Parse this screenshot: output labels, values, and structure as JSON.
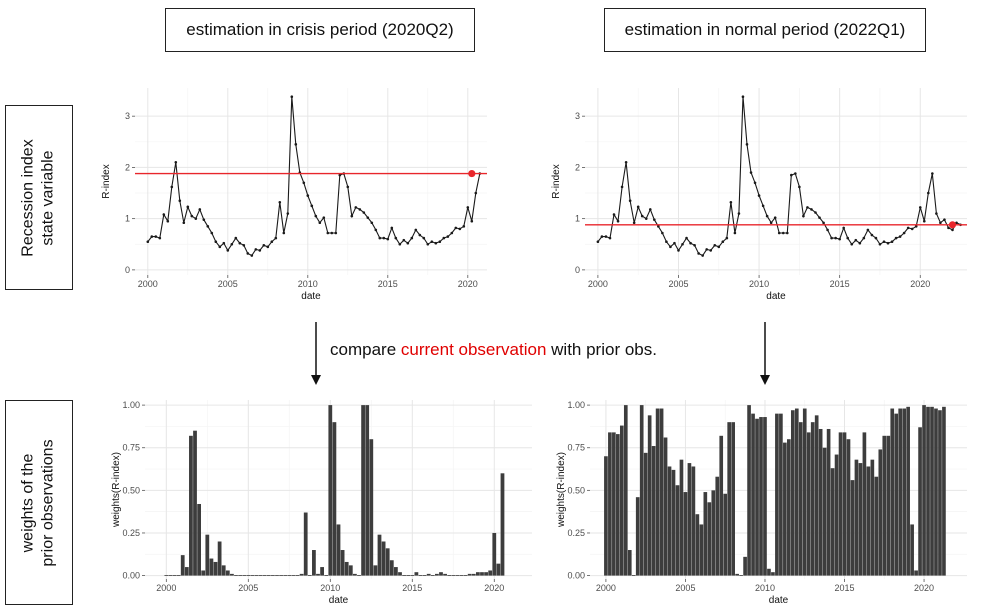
{
  "titles": {
    "left": "estimation in crisis period (2020Q2)",
    "right": "estimation in normal period (2022Q1)"
  },
  "side_labels": {
    "top": [
      "Recession index",
      "state variable"
    ],
    "bottom": [
      "weights of the",
      "prior observations"
    ]
  },
  "middle_text": {
    "prefix": "compare ",
    "highlight": "current observation",
    "suffix": " with prior obs."
  },
  "colors": {
    "line": "#1a1a1a",
    "hline": "#e8262b",
    "point": "#e8262b",
    "bar": "#3d3d3d",
    "grid_major": "#e6e6e6",
    "grid_minor": "#f4f4f4",
    "highlight_text": "#e00000"
  },
  "chart_data": [
    {
      "type": "line",
      "panel": "top-left",
      "xlabel": "date",
      "ylabel": "R-index",
      "xlim": [
        1999.2,
        2021.2
      ],
      "ylim": [
        -0.1,
        3.55
      ],
      "xticks": [
        2000,
        2005,
        2010,
        2015,
        2020
      ],
      "yticks": [
        0,
        1,
        2,
        3
      ],
      "grid": true,
      "hline": 1.88,
      "current_point": {
        "x": 2020.25,
        "y": 1.88
      },
      "series": [
        {
          "x_start": 2000.0,
          "x_step": 0.25,
          "values": [
            0.55,
            0.65,
            0.65,
            0.62,
            1.08,
            0.95,
            1.62,
            2.1,
            1.35,
            0.92,
            1.23,
            1.05,
            1.0,
            1.18,
            0.98,
            0.85,
            0.72,
            0.55,
            0.45,
            0.52,
            0.38,
            0.5,
            0.62,
            0.52,
            0.48,
            0.32,
            0.28,
            0.4,
            0.38,
            0.48,
            0.45,
            0.55,
            0.62,
            1.32,
            0.72,
            1.1,
            3.38,
            2.45,
            1.9,
            1.7,
            1.45,
            1.25,
            1.05,
            0.92,
            1.02,
            0.72,
            0.72,
            0.72,
            1.85,
            1.88,
            1.62,
            1.05,
            1.22,
            1.18,
            1.12,
            1.02,
            0.92,
            0.78,
            0.62,
            0.62,
            0.6,
            0.82,
            0.62,
            0.5,
            0.58,
            0.52,
            0.62,
            0.78,
            0.68,
            0.62,
            0.5,
            0.55,
            0.52,
            0.55,
            0.62,
            0.65,
            0.72,
            0.82,
            0.8,
            0.85,
            1.22,
            0.95,
            1.5,
            1.88
          ]
        }
      ]
    },
    {
      "type": "line",
      "panel": "top-right",
      "xlabel": "date",
      "ylabel": "R-index",
      "xlim": [
        1999.2,
        2022.9
      ],
      "ylim": [
        -0.1,
        3.55
      ],
      "xticks": [
        2000,
        2005,
        2010,
        2015,
        2020
      ],
      "yticks": [
        0,
        1,
        2,
        3
      ],
      "grid": true,
      "hline": 0.88,
      "current_point": {
        "x": 2022.0,
        "y": 0.88
      },
      "series": [
        {
          "x_start": 2000.0,
          "x_step": 0.25,
          "values": [
            0.55,
            0.65,
            0.65,
            0.62,
            1.08,
            0.95,
            1.62,
            2.1,
            1.35,
            0.92,
            1.23,
            1.05,
            1.0,
            1.18,
            0.98,
            0.85,
            0.72,
            0.55,
            0.45,
            0.52,
            0.38,
            0.5,
            0.62,
            0.52,
            0.48,
            0.32,
            0.28,
            0.4,
            0.38,
            0.48,
            0.45,
            0.55,
            0.62,
            1.32,
            0.72,
            1.1,
            3.38,
            2.45,
            1.9,
            1.7,
            1.45,
            1.25,
            1.05,
            0.92,
            1.02,
            0.72,
            0.72,
            0.72,
            1.85,
            1.88,
            1.62,
            1.05,
            1.22,
            1.18,
            1.12,
            1.02,
            0.92,
            0.78,
            0.62,
            0.62,
            0.6,
            0.82,
            0.62,
            0.5,
            0.58,
            0.52,
            0.62,
            0.78,
            0.68,
            0.62,
            0.5,
            0.55,
            0.52,
            0.55,
            0.62,
            0.65,
            0.72,
            0.82,
            0.8,
            0.85,
            1.22,
            0.95,
            1.5,
            1.88,
            1.1,
            0.92,
            0.98,
            0.82,
            0.78,
            0.92,
            0.88
          ]
        }
      ]
    },
    {
      "type": "bar",
      "panel": "bottom-left",
      "xlabel": "date",
      "ylabel": "weights(R-index)",
      "xlim": [
        1998.7,
        2022.3
      ],
      "ylim": [
        -0.02,
        1.03
      ],
      "xticks": [
        2000,
        2005,
        2010,
        2015,
        2020
      ],
      "yticks": [
        0,
        0.25,
        0.5,
        0.75,
        1.0
      ],
      "ytick_labels": [
        "0.00",
        "0.25",
        "0.50",
        "0.75",
        "1.00"
      ],
      "grid": true,
      "series": [
        {
          "x_start": 2000.0,
          "x_step": 0.25,
          "values": [
            0,
            0,
            0,
            0,
            0.12,
            0.05,
            0.82,
            0.85,
            0.42,
            0.03,
            0.24,
            0.1,
            0.08,
            0.2,
            0.06,
            0.03,
            0.01,
            0,
            0,
            0,
            0,
            0,
            0,
            0,
            0,
            0,
            0,
            0,
            0,
            0,
            0,
            0,
            0,
            0.01,
            0.37,
            0,
            0.15,
            0.01,
            0.05,
            0,
            1.0,
            0.9,
            0.3,
            0.15,
            0.08,
            0.06,
            0.01,
            0,
            1.0,
            1.0,
            0.8,
            0.06,
            0.24,
            0.2,
            0.16,
            0.09,
            0.05,
            0.02,
            0,
            0,
            0,
            0.02,
            0,
            0,
            0.01,
            0,
            0.01,
            0.02,
            0.01,
            0,
            0,
            0,
            0,
            0,
            0.01,
            0.01,
            0.02,
            0.02,
            0.02,
            0.03,
            0.25,
            0.07,
            0.6
          ]
        }
      ]
    },
    {
      "type": "bar",
      "panel": "bottom-right",
      "xlabel": "date",
      "ylabel": "weights(R-index)",
      "xlim": [
        1999.0,
        2022.7
      ],
      "ylim": [
        -0.02,
        1.03
      ],
      "xticks": [
        2000,
        2005,
        2010,
        2015,
        2020
      ],
      "yticks": [
        0,
        0.25,
        0.5,
        0.75,
        1.0
      ],
      "ytick_labels": [
        "0.00",
        "0.25",
        "0.50",
        "0.75",
        "1.00"
      ],
      "grid": true,
      "series": [
        {
          "x_start": 2000.0,
          "x_step": 0.25,
          "values": [
            0.7,
            0.84,
            0.84,
            0.83,
            0.88,
            1.0,
            0.15,
            0,
            0.46,
            1.0,
            0.72,
            0.94,
            0.76,
            0.98,
            0.98,
            0.81,
            0.64,
            0.62,
            0.53,
            0.68,
            0.49,
            0.66,
            0.64,
            0.36,
            0.3,
            0.49,
            0.43,
            0.5,
            0.58,
            0.82,
            0.48,
            0.9,
            0.9,
            0.01,
            0,
            0.11,
            1.0,
            0.95,
            0.92,
            0.93,
            0.93,
            0.04,
            0.02,
            0.95,
            0.95,
            0.78,
            0.8,
            0.97,
            0.98,
            0.9,
            0.98,
            0.84,
            0.9,
            0.94,
            0.86,
            0.75,
            0.86,
            0.63,
            0.71,
            0.84,
            0.84,
            0.8,
            0.56,
            0.68,
            0.66,
            0.84,
            0.64,
            0.68,
            0.58,
            0.74,
            0.82,
            0.82,
            0.98,
            0.95,
            0.98,
            0.98,
            0.99,
            0.3,
            0.03,
            0.87,
            1.0,
            0.99,
            0.99,
            0.98,
            0.97,
            0.99
          ]
        }
      ]
    }
  ]
}
